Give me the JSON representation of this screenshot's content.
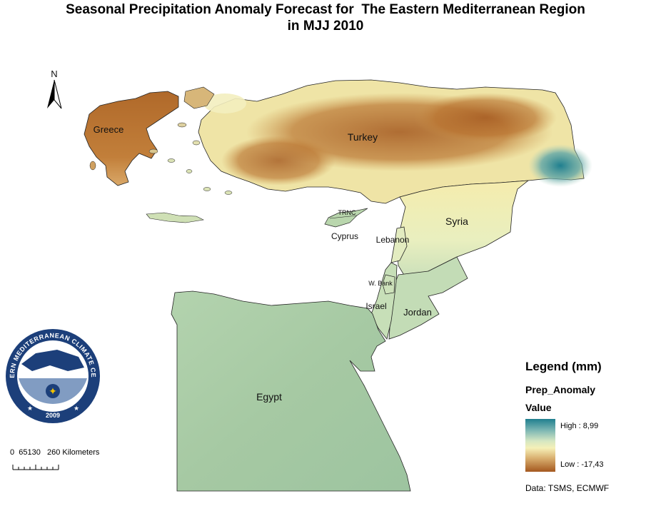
{
  "title": {
    "line1": "Seasonal Precipitation Anomaly Forecast for  The Eastern Mediterranean Region",
    "line2": "in MJJ 2010"
  },
  "north_arrow": {
    "label": "N"
  },
  "countries": [
    {
      "id": "greece",
      "label": "Greece"
    },
    {
      "id": "turkey",
      "label": "Turkey"
    },
    {
      "id": "trnc",
      "label": "TRNC"
    },
    {
      "id": "cyprus",
      "label": "Cyprus"
    },
    {
      "id": "lebanon",
      "label": "Lebanon"
    },
    {
      "id": "syria",
      "label": "Syria"
    },
    {
      "id": "wbank",
      "label": "W. Bank"
    },
    {
      "id": "israel",
      "label": "Israel"
    },
    {
      "id": "jordan",
      "label": "Jordan"
    },
    {
      "id": "egypt",
      "label": "Egypt"
    }
  ],
  "logo": {
    "text": "EASTERN MEDITERRANEAN CLIMATE CENTRE",
    "year": "2009"
  },
  "scale_bar": {
    "label": "0  65130   260 Kilometers"
  },
  "legend": {
    "title": "Legend (mm)",
    "field": "Prep_Anomaly",
    "value_label": "Value",
    "high_label": "High : 8,99",
    "low_label": "Low : -17,43",
    "high_value": 8.99,
    "low_value": -17.43
  },
  "credit": "Data:  TSMS, ECMWF",
  "colors": {
    "high": "#1f7f8f",
    "mid": "#f5f0b8",
    "low": "#a4581f",
    "egypt": "#a9cca6",
    "border": "#222222",
    "logo_ring": "#1c3f7a"
  }
}
